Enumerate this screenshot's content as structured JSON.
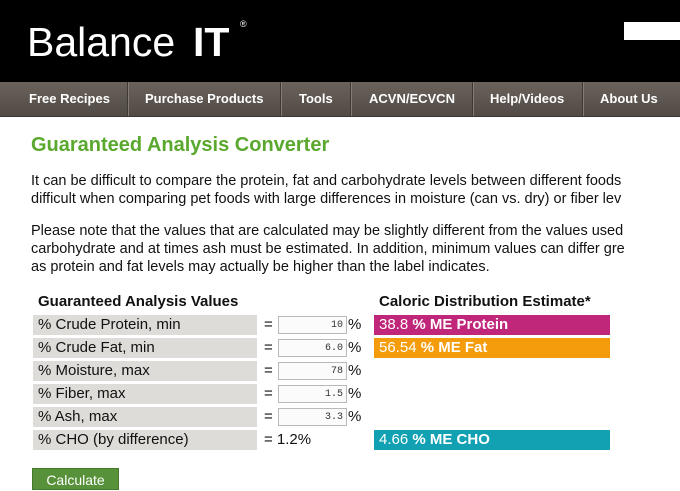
{
  "header": {
    "logo_text": "Balance",
    "logo_strong": "IT",
    "logo_reg": "®"
  },
  "nav": {
    "items": [
      {
        "label": "Free Recipes"
      },
      {
        "label": "Purchase Products"
      },
      {
        "label": "Tools"
      },
      {
        "label": "ACVN/ECVCN"
      },
      {
        "label": "Help/Videos"
      },
      {
        "label": "About Us"
      }
    ]
  },
  "main": {
    "title": "Guaranteed Analysis Converter",
    "para1": [
      "It can be difficult to compare the protein, fat and carbohydrate levels between different foods",
      "difficult when comparing pet foods with large differences in moisture (can vs. dry) or fiber lev"
    ],
    "para2": [
      "Please note that the values that are calculated may be slightly different from the values used",
      "carbohydrate and at times ash must be estimated. In addition, minimum values can differ gre",
      "as protein and fat levels may actually be higher than the label indicates."
    ]
  },
  "analysis": {
    "heading": "Guaranteed Analysis Values",
    "eq": "=",
    "pct": "%",
    "rows": [
      {
        "label": "% Crude Protein, min",
        "value": "10"
      },
      {
        "label": "% Crude Fat, min",
        "value": "6.0"
      },
      {
        "label": "% Moisture, max",
        "value": "78"
      },
      {
        "label": "% Fiber, max",
        "value": "1.5"
      },
      {
        "label": "% Ash, max",
        "value": "3.3"
      }
    ],
    "cho": {
      "label": "% CHO (by difference)",
      "value": "= 1.2%"
    }
  },
  "caloric": {
    "heading": "Caloric Distribution Estimate*",
    "protein": {
      "value": "38.8",
      "label": "% ME Protein",
      "color": "#c0267a"
    },
    "fat": {
      "value": "56.54",
      "label": "% ME Fat",
      "color": "#f59c0c"
    },
    "cho": {
      "value": "4.66",
      "label": "% ME CHO",
      "color": "#12a1b3"
    }
  },
  "calculate_label": "Calculate"
}
